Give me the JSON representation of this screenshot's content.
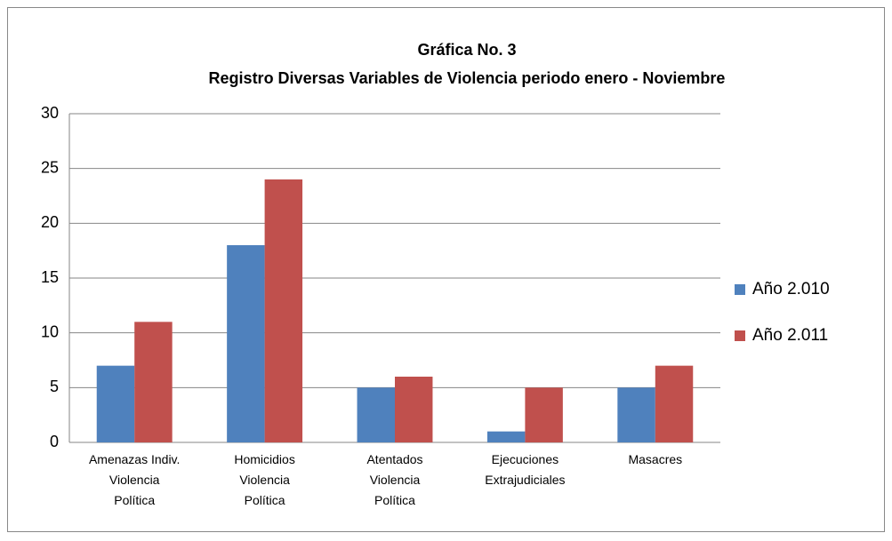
{
  "chart_data": {
    "type": "bar",
    "title": "Gráfica No. 3",
    "subtitle": "Registro Diversas Variables de Violencia periodo enero - Noviembre",
    "categories": [
      "Amenazas Indiv.\nViolencia\nPolítica",
      "Homicidios\nViolencia\nPolítica",
      "Atentados\nViolencia\nPolítica",
      "Ejecuciones\nExtrajudiciales",
      "Masacres"
    ],
    "series": [
      {
        "name": "Año 2.010",
        "color": "#4f81bd",
        "values": [
          7,
          18,
          5,
          1,
          5
        ]
      },
      {
        "name": "Año 2.011",
        "color": "#c0504d",
        "values": [
          11,
          24,
          6,
          5,
          7
        ]
      }
    ],
    "ylim": [
      0,
      30
    ],
    "yticks": [
      0,
      5,
      10,
      15,
      20,
      25,
      30
    ],
    "grid": true,
    "legend": "right"
  }
}
